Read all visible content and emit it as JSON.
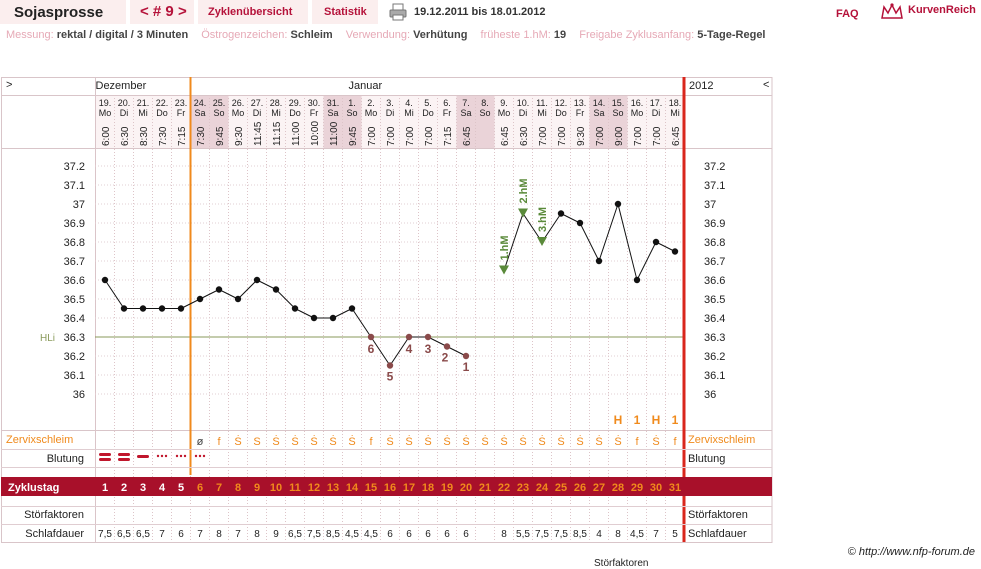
{
  "header": {
    "title": "Sojasprosse",
    "cycle_nav": "< # 9 >",
    "tab_overview": "Zyklenübersicht",
    "tab_stats": "Statistik",
    "date_range": "19.12.2011 bis 18.01.2012",
    "faq": "FAQ",
    "logo": "KurvenReich"
  },
  "meta": {
    "messung_label": "Messung:",
    "messung_value": "rektal / digital / 3 Minuten",
    "oestrogen_label": "Östrogenzeichen:",
    "oestrogen_value": "Schleim",
    "verwendung_label": "Verwendung:",
    "verwendung_value": "Verhütung",
    "hm_label": "früheste 1.hM:",
    "hm_value": "19",
    "freigabe_label": "Freigabe Zyklusanfang:",
    "freigabe_value": "5-Tage-Regel"
  },
  "chart_data": {
    "type": "line",
    "nav_left": ">",
    "nav_right": "<",
    "months": [
      {
        "label": "Dezember",
        "start_index": 0
      },
      {
        "label": "Januar",
        "start_index": 13
      }
    ],
    "year_label": "2012",
    "dates": [
      "19.",
      "20.",
      "21.",
      "22.",
      "23.",
      "24.",
      "25.",
      "26.",
      "27.",
      "28.",
      "29.",
      "30.",
      "31.",
      "1.",
      "2.",
      "3.",
      "4.",
      "5.",
      "6.",
      "7.",
      "8.",
      "9.",
      "10.",
      "11.",
      "12.",
      "13.",
      "14.",
      "15.",
      "16.",
      "17.",
      "18."
    ],
    "weekdays": [
      "Mo",
      "Di",
      "Mi",
      "Do",
      "Fr",
      "Sa",
      "So",
      "Mo",
      "Di",
      "Mi",
      "Do",
      "Fr",
      "Sa",
      "So",
      "Mo",
      "Di",
      "Mi",
      "Do",
      "Fr",
      "Sa",
      "So",
      "Mo",
      "Di",
      "Mi",
      "Do",
      "Fr",
      "Sa",
      "So",
      "Mo",
      "Di",
      "Mi"
    ],
    "times": [
      "6:00",
      "6:30",
      "8:30",
      "7:30",
      "7:15",
      "7:30",
      "9:45",
      "9:30",
      "11:45",
      "11:15",
      "11:00",
      "10:00",
      "11:00",
      "9:45",
      "7:00",
      "7:00",
      "7:00",
      "7:00",
      "7:15",
      "6:45",
      "",
      "6:45",
      "6:30",
      "7:00",
      "7:00",
      "9:30",
      "7:00",
      "9:00",
      "7:00",
      "7:00",
      "6:45"
    ],
    "temperatures": [
      36.6,
      36.45,
      36.45,
      36.45,
      36.45,
      36.5,
      36.55,
      36.5,
      36.6,
      36.55,
      36.45,
      36.4,
      36.4,
      36.45,
      36.3,
      36.15,
      36.3,
      36.3,
      36.25,
      36.2,
      null,
      36.65,
      36.95,
      36.8,
      36.95,
      36.9,
      36.7,
      37.0,
      36.6,
      36.8,
      36.75
    ],
    "y_ticks": [
      "37.2",
      "37.1",
      "37",
      "36.9",
      "36.8",
      "36.7",
      "36.6",
      "36.5",
      "36.4",
      "36.3",
      "36.2",
      "36.1",
      "36"
    ],
    "ylim": [
      36.0,
      37.2
    ],
    "coverline": {
      "label": "HLi",
      "value": 36.3
    },
    "low_labels": [
      {
        "index": 14,
        "label": "6"
      },
      {
        "index": 15,
        "label": "5"
      },
      {
        "index": 16,
        "label": "4"
      },
      {
        "index": 17,
        "label": "3"
      },
      {
        "index": 18,
        "label": "2"
      },
      {
        "index": 19,
        "label": "1"
      }
    ],
    "high_labels": [
      {
        "index": 21,
        "label": "1.hM"
      },
      {
        "index": 22,
        "label": "2.hM"
      },
      {
        "index": 23,
        "label": "3.hM"
      }
    ],
    "marker_index": 5,
    "end_index": 31,
    "mucus_peak_markers": [
      "",
      "",
      "",
      "",
      "",
      "",
      "",
      "",
      "",
      "",
      "",
      "",
      "",
      "",
      "",
      "",
      "",
      "",
      "",
      "",
      "",
      "",
      "",
      "",
      "",
      "",
      "",
      "H",
      "1",
      "H",
      "1"
    ],
    "mucus_label": "Zervixschleim",
    "mucus": [
      "",
      "",
      "",
      "",
      "",
      "ø",
      "f",
      "Ṡ",
      "S",
      "Ṡ",
      "Ṡ",
      "Ṡ",
      "Ṡ",
      "Ṡ",
      "f",
      "Ṡ",
      "Ṡ",
      "Ṡ",
      "Ṡ",
      "Ṡ",
      "Ṡ",
      "Ṡ",
      "Ṡ",
      "Ṡ",
      "Ṡ",
      "Ṡ",
      "Ṡ",
      "Ṡ",
      "f",
      "Ṡ",
      "f"
    ],
    "bleeding_label": "Blutung",
    "bleeding": [
      3,
      3,
      2,
      1,
      1,
      1,
      0,
      0,
      0,
      0,
      0,
      0,
      0,
      0,
      0,
      0,
      0,
      0,
      0,
      0,
      0,
      0,
      0,
      0,
      0,
      0,
      0,
      0,
      0,
      0,
      0
    ],
    "cycle_day_label": "Zyklustag",
    "cycle_days": [
      "1",
      "2",
      "3",
      "4",
      "5",
      "6",
      "7",
      "8",
      "9",
      "10",
      "11",
      "12",
      "13",
      "14",
      "15",
      "16",
      "17",
      "18",
      "19",
      "20",
      "21",
      "22",
      "23",
      "24",
      "25",
      "26",
      "27",
      "28",
      "29",
      "30",
      "31"
    ],
    "disturbance_label": "Störfaktoren",
    "sleep_label": "Schlafdauer",
    "sleep": [
      "7,5",
      "6,5",
      "6,5",
      "7",
      "6",
      "7",
      "8",
      "7",
      "8",
      "9",
      "6,5",
      "7,5",
      "8,5",
      "4,5",
      "4,5",
      "6",
      "6",
      "6",
      "6",
      "6",
      "",
      "8",
      "5,5",
      "7,5",
      "7,5",
      "8,5",
      "4",
      "8",
      "4,5",
      "7",
      "5"
    ]
  },
  "footer": {
    "credit": "© http://www.nfp-forum.de",
    "cut_label": "Störfaktoren"
  },
  "colors": {
    "accent": "#b5123a",
    "orange": "#f08a1c",
    "red_line": "#d9261c",
    "coverline": "#8a9a5b",
    "green": "#5a8a3a",
    "low": "#8a4a4a"
  }
}
